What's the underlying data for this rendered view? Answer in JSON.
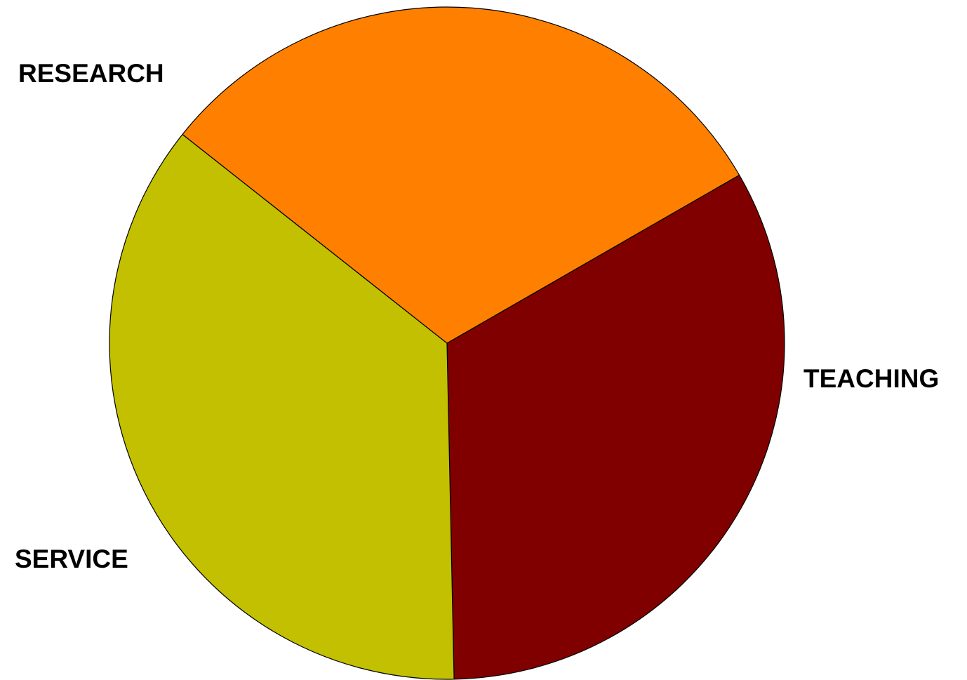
{
  "chart_data": {
    "type": "pie",
    "title": "",
    "slices": [
      {
        "label": "RESEARCH",
        "value": 33,
        "color": "#800000"
      },
      {
        "label": "TEACHING",
        "value": 36,
        "color": "#C2C000"
      },
      {
        "label": "SERVICE",
        "value": 31,
        "color": "#FF8000"
      }
    ],
    "start_angle_deg": -30,
    "direction": "clockwise",
    "slice_outline_color": "#000000",
    "legend": "none"
  }
}
